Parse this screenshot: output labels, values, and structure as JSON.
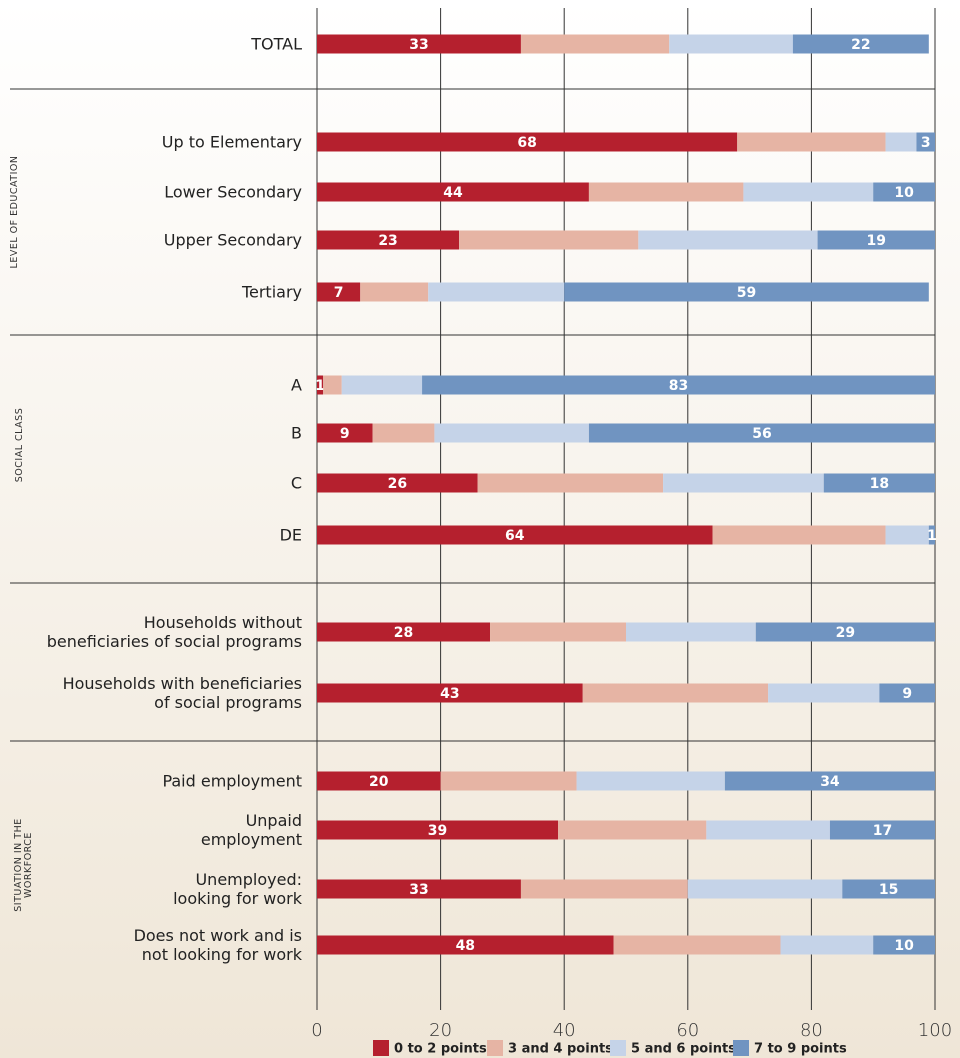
{
  "chart_data": {
    "type": "stacked_bar_horizontal",
    "groups": [
      {
        "label": null,
        "categories": [
          "TOTAL"
        ]
      },
      {
        "label": "LEVEL OF EDUCATION",
        "categories": [
          "Up to Elementary",
          "Lower Secondary",
          "Upper Secondary",
          "Tertiary"
        ]
      },
      {
        "label": "SOCIAL CLASS",
        "categories": [
          "A",
          "B",
          "C",
          "DE"
        ]
      },
      {
        "label": null,
        "categories": [
          "Households without\nbeneficiaries of social programs",
          "Households with beneficiaries\nof social programs"
        ]
      },
      {
        "label": "SITUATION IN THE\nWORKFORCE",
        "categories": [
          "Paid employment",
          "Unpaid\nemployment",
          "Unemployed:\nlooking for work",
          "Does not work and is\nnot looking for work"
        ]
      }
    ],
    "series": [
      {
        "name": "0 to 2 points",
        "color": "#b5202e",
        "labels": true,
        "values": [
          33,
          68,
          44,
          23,
          7,
          1,
          9,
          26,
          64,
          28,
          43,
          20,
          39,
          33,
          48
        ]
      },
      {
        "name": "3 and 4 points",
        "color": "#e6b4a4",
        "labels": false,
        "values": [
          24,
          24,
          25,
          29,
          11,
          3,
          10,
          30,
          28,
          22,
          30,
          22,
          24,
          27,
          27
        ]
      },
      {
        "name": "5 and 6 points",
        "color": "#c5d3e8",
        "labels": false,
        "values": [
          20,
          5,
          21,
          29,
          22,
          13,
          25,
          26,
          7,
          21,
          18,
          24,
          20,
          25,
          15
        ]
      },
      {
        "name": "7 to 9 points",
        "color": "#7094c1",
        "labels": true,
        "values": [
          22,
          3,
          10,
          19,
          59,
          83,
          56,
          18,
          1,
          29,
          9,
          34,
          17,
          15,
          10
        ]
      }
    ],
    "xlim": [
      0,
      100
    ],
    "xticks": [
      0,
      20,
      40,
      60,
      80,
      100
    ],
    "grid": true
  }
}
